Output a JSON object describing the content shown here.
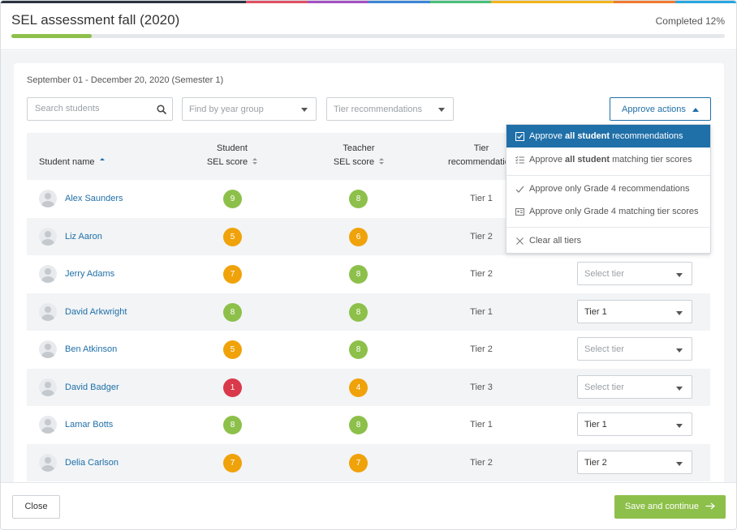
{
  "header": {
    "title": "SEL assessment fall (2020)",
    "completed": "Completed 12%",
    "progress": 0.12,
    "progress_color": "#8dc04a",
    "rainbow_colors": [
      "#2b3340",
      "#2b3340",
      "#2b3340",
      "#2b3340",
      "#e05062",
      "#a54fc2",
      "#3b86d6",
      "#49c07a",
      "#f2b41c",
      "#f2b41c",
      "#f07b2e",
      "#27a6df"
    ]
  },
  "filters": {
    "date_range": "September 01 - December 20, 2020 (Semester 1)",
    "search_placeholder": "Search students",
    "year_group": "Find by year group",
    "tier_recommendations": "Tier recommendations",
    "approve_actions": "Approve actions"
  },
  "table": {
    "columns": {
      "student_name": "Student name",
      "student_sel_1": "Student",
      "student_sel_2": "SEL score",
      "teacher_sel_1": "Teacher",
      "teacher_sel_2": "SEL score",
      "tier_rec_1": "Tier",
      "tier_rec_2": "recommendation"
    },
    "rows": [
      {
        "name": "Alex Saunders",
        "student_score": "9",
        "student_color": "#8dc04a",
        "teacher_score": "8",
        "teacher_color": "#8dc04a",
        "tier": "Tier 1",
        "select": ""
      },
      {
        "name": "Liz Aaron",
        "student_score": "5",
        "student_color": "#f0a20a",
        "teacher_score": "6",
        "teacher_color": "#f0a20a",
        "tier": "Tier 2",
        "select": ""
      },
      {
        "name": "Jerry Adams",
        "student_score": "7",
        "student_color": "#f0a20a",
        "teacher_score": "8",
        "teacher_color": "#8dc04a",
        "tier": "Tier 2",
        "select": "Select tier"
      },
      {
        "name": "David Arkwright",
        "student_score": "8",
        "student_color": "#8dc04a",
        "teacher_score": "8",
        "teacher_color": "#8dc04a",
        "tier": "Tier 1",
        "select": "Tier 1"
      },
      {
        "name": "Ben Atkinson",
        "student_score": "5",
        "student_color": "#f0a20a",
        "teacher_score": "8",
        "teacher_color": "#8dc04a",
        "tier": "Tier 2",
        "select": "Select tier"
      },
      {
        "name": "David Badger",
        "student_score": "1",
        "student_color": "#d9394a",
        "teacher_score": "4",
        "teacher_color": "#f0a20a",
        "tier": "Tier 3",
        "select": "Select tier"
      },
      {
        "name": "Lamar Botts",
        "student_score": "8",
        "student_color": "#8dc04a",
        "teacher_score": "8",
        "teacher_color": "#8dc04a",
        "tier": "Tier 1",
        "select": "Tier 1"
      },
      {
        "name": "Delia Carlson",
        "student_score": "7",
        "student_color": "#f0a20a",
        "teacher_score": "7",
        "teacher_color": "#f0a20a",
        "tier": "Tier 2",
        "select": "Tier 2"
      }
    ]
  },
  "menu": {
    "item1_pre": "Approve ",
    "item1_bold": "all student",
    "item1_post": " recommendations",
    "item2_pre": "Approve ",
    "item2_bold": "all student",
    "item2_post": " matching tier scores",
    "item3": "Approve only Grade 4 recommendations",
    "item4": "Approve only Grade 4 matching tier scores",
    "item5": "Clear all tiers",
    "active_color": "#1f6fa8"
  },
  "footer": {
    "close": "Close",
    "save": "Save and continue"
  }
}
